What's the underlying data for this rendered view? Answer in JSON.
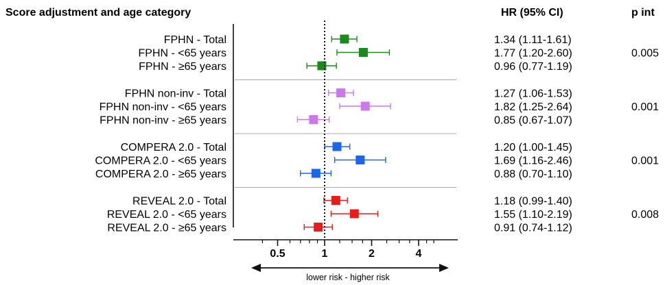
{
  "header": {
    "group_title": "Score adjustment and age category",
    "hr_title": "HR  (95% CI)",
    "pint_title": "p int"
  },
  "chart_data": {
    "type": "forest",
    "x_scale": "log2",
    "xlim": [
      0.35,
      5.6
    ],
    "reference_value": 1,
    "x_ticks": [
      0.5,
      1,
      2,
      4
    ],
    "x_tick_labels": [
      "0.5",
      "1",
      "2",
      "4"
    ],
    "x_direction_label": "lower risk - higher risk",
    "groups": [
      {
        "name": "FPHN",
        "color": "#1a8a1a",
        "p_int": "0.005",
        "rows": [
          {
            "label": "FPHN - Total",
            "hr": 1.34,
            "lo": 1.11,
            "hi": 1.61,
            "ci_text": "1.34 (1.11-1.61)"
          },
          {
            "label": "FPHN - <65 years",
            "hr": 1.77,
            "lo": 1.2,
            "hi": 2.6,
            "ci_text": "1.77 (1.20-2.60)"
          },
          {
            "label": "FPHN - ≥65 years",
            "hr": 0.96,
            "lo": 0.77,
            "hi": 1.19,
            "ci_text": "0.96 (0.77-1.19)"
          }
        ]
      },
      {
        "name": "FPHN non-inv",
        "color": "#cc77ee",
        "p_int": "0.001",
        "rows": [
          {
            "label": "FPHN non-inv - Total",
            "hr": 1.27,
            "lo": 1.06,
            "hi": 1.53,
            "ci_text": "1.27 (1.06-1.53)"
          },
          {
            "label": "FPHN non-inv - <65 years",
            "hr": 1.82,
            "lo": 1.25,
            "hi": 2.64,
            "ci_text": "1.82 (1.25-2.64)"
          },
          {
            "label": "FPHN non-inv - ≥65 years",
            "hr": 0.85,
            "lo": 0.67,
            "hi": 1.07,
            "ci_text": "0.85 (0.67-1.07)"
          }
        ]
      },
      {
        "name": "COMPERA 2.0",
        "color": "#1a66ee",
        "p_int": "0.001",
        "rows": [
          {
            "label": "COMPERA 2.0 - Total",
            "hr": 1.2,
            "lo": 1.0,
            "hi": 1.45,
            "ci_text": "1.20 (1.00-1.45)"
          },
          {
            "label": "COMPERA 2.0 - <65 years",
            "hr": 1.69,
            "lo": 1.16,
            "hi": 2.46,
            "ci_text": "1.69 (1.16-2.46)"
          },
          {
            "label": "COMPERA 2.0 - ≥65 years",
            "hr": 0.88,
            "lo": 0.7,
            "hi": 1.1,
            "ci_text": "0.88 (0.70-1.10)"
          }
        ]
      },
      {
        "name": "REVEAL 2.0",
        "color": "#ee1a1a",
        "p_int": "0.008",
        "rows": [
          {
            "label": "REVEAL 2.0 - Total",
            "hr": 1.18,
            "lo": 0.99,
            "hi": 1.4,
            "ci_text": "1.18 (0.99-1.40)"
          },
          {
            "label": "REVEAL 2.0 - <65 years",
            "hr": 1.55,
            "lo": 1.1,
            "hi": 2.19,
            "ci_text": "1.55 (1.10-2.19)"
          },
          {
            "label": "REVEAL 2.0 - ≥65 years",
            "hr": 0.91,
            "lo": 0.74,
            "hi": 1.12,
            "ci_text": "0.91 (0.74-1.12)"
          }
        ]
      }
    ]
  }
}
